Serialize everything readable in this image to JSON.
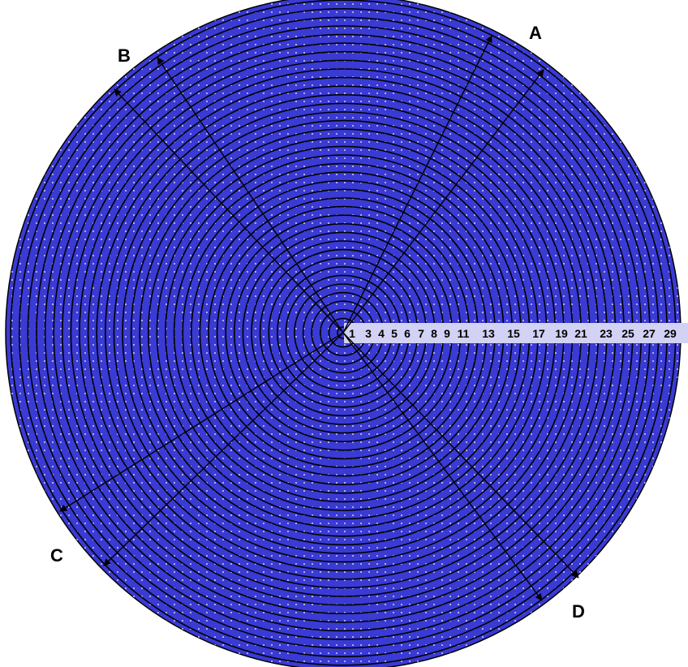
{
  "disk": {
    "fill_color": "#3a3ad4",
    "ring_color": "#000000",
    "dot_color": "#ffffff",
    "label_strip_color": "#d2d2f4"
  },
  "ring_labels": [
    "1",
    "3",
    "4",
    "5",
    "6",
    "7",
    "8",
    "9",
    "11",
    "13",
    "15",
    "17",
    "19",
    "21",
    "23",
    "25",
    "27",
    "29"
  ],
  "radial_arrows": [
    {
      "id": "a1",
      "label": "A"
    },
    {
      "id": "a2",
      "label": ""
    },
    {
      "id": "b1",
      "label": "B"
    },
    {
      "id": "b2",
      "label": ""
    },
    {
      "id": "c1",
      "label": "C"
    },
    {
      "id": "c2",
      "label": ""
    },
    {
      "id": "d1",
      "label": "D"
    },
    {
      "id": "d2",
      "label": ""
    }
  ]
}
